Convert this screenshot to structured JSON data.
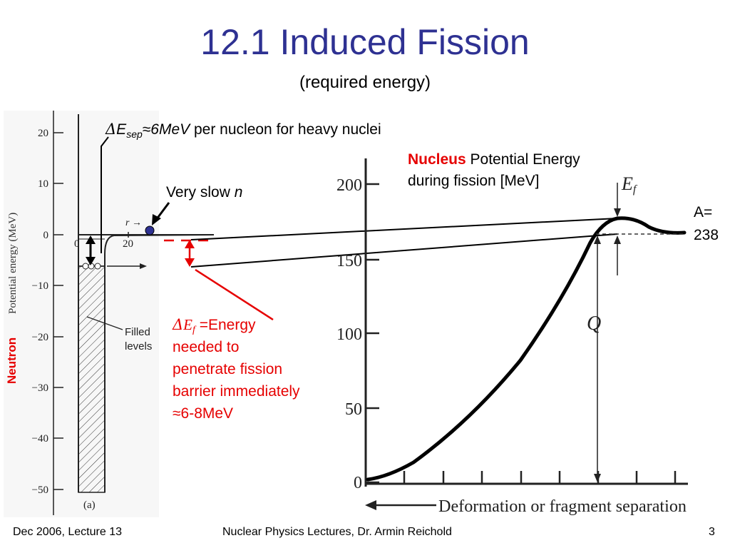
{
  "slide": {
    "title": "12.1 Induced Fission",
    "subtitle": "(required energy)"
  },
  "annotations": {
    "esep": {
      "delta": "Δ",
      "e": "E",
      "sub": "sep",
      "approx": "≈6MeV",
      "rest": " per nucleon for heavy nuclei"
    },
    "nucleus_word": "Nucleus",
    "nucleus_rest": " Potential Energy",
    "nucleus_line2": "during fission [MeV]",
    "slow_text": "Very slow ",
    "slow_n": "n",
    "mass_line1": "A=",
    "mass_line2": "238",
    "ef_delta": "Δ",
    "ef_e": "E",
    "ef_sub": "f",
    "ef_line1_rest": " =Energy",
    "ef_lines": [
      "needed to",
      "penetrate fission",
      "barrier immediately",
      "≈6-8MeV"
    ],
    "neutron_word": "Neutron",
    "colors": {
      "title": "#2e3192",
      "highlight": "#e60000",
      "neutron_dot": "#2e3192"
    }
  },
  "left_plot": {
    "ylabel": "Potential energy (MeV)",
    "yticks": [
      "20",
      "10",
      "0",
      "−10",
      "−20",
      "−30",
      "−40",
      "−50"
    ],
    "xticks": [
      "0",
      "20"
    ],
    "r_label": "r →",
    "filled_label_1": "Filled",
    "filled_label_2": "levels",
    "panel_label": "(a)"
  },
  "right_plot": {
    "yticks": [
      "200",
      "150",
      "100",
      "50",
      "0"
    ],
    "ef_label": "E",
    "ef_label_sub": "f",
    "q_label": "Q",
    "xlabel": "Deformation or fragment separation"
  },
  "footer": {
    "left": "Dec 2006, Lecture 13",
    "center": "Nuclear Physics  Lectures, Dr. Armin Reichold",
    "page": "3"
  }
}
